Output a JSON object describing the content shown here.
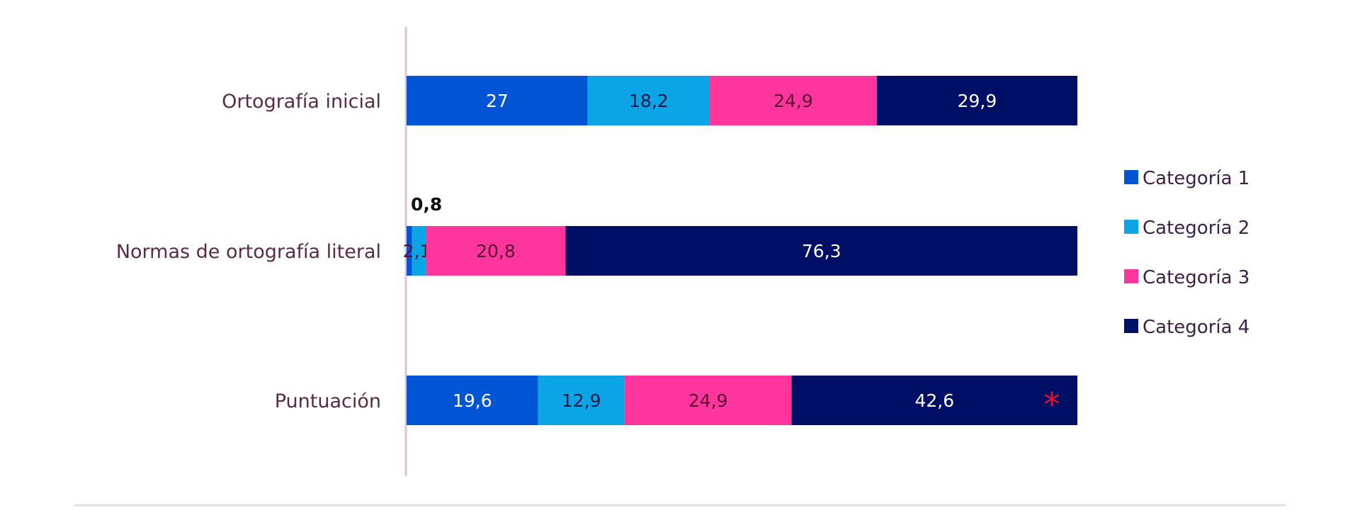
{
  "chart_data": {
    "type": "bar",
    "orientation": "horizontal",
    "stacked": true,
    "categories": [
      "Ortografía inicial",
      "Normas de ortografía literal",
      "Puntuación"
    ],
    "series": [
      {
        "name": "Categoría 1",
        "color": "#0055d4",
        "values": [
          27,
          0.8,
          19.6
        ],
        "labels": [
          "27",
          "0,8",
          "19,6"
        ],
        "label_color": "#ffffff"
      },
      {
        "name": "Categoría 2",
        "color": "#0ba5e6",
        "values": [
          18.2,
          2.1,
          12.9
        ],
        "labels": [
          "18,2",
          "2,1",
          "12,9"
        ],
        "label_color": "#1a1a4a"
      },
      {
        "name": "Categoría 3",
        "color": "#ff359e",
        "values": [
          24.9,
          20.8,
          24.9
        ],
        "labels": [
          "24,9",
          "20,8",
          "24,9"
        ],
        "label_color": "#5a1030"
      },
      {
        "name": "Categoría 4",
        "color": "#000f66",
        "values": [
          29.9,
          76.3,
          42.6
        ],
        "labels": [
          "29,9",
          "76,3",
          "42,6"
        ],
        "label_color": "#ffffff"
      }
    ],
    "xlim": [
      0,
      100
    ],
    "legend_position": "right",
    "grid": false,
    "annotations": [
      {
        "category": "Puntuación",
        "text": "*",
        "color": "#e8102a"
      }
    ]
  }
}
